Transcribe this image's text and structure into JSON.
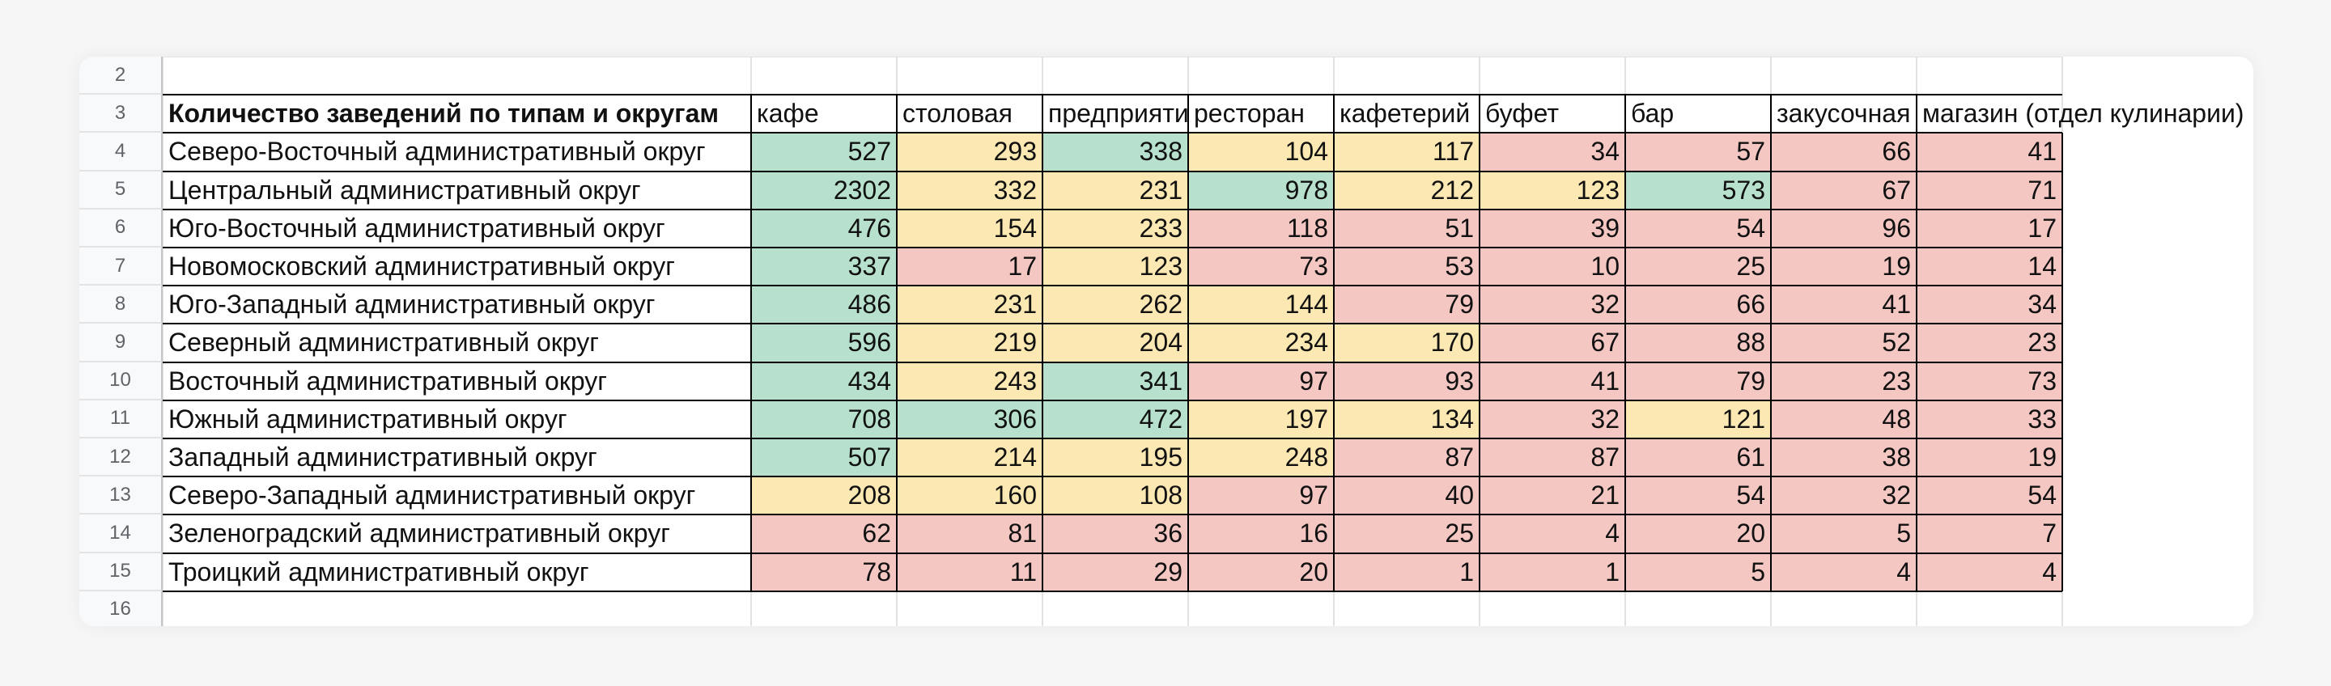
{
  "sheet": {
    "row_numbers": [
      "2",
      "3",
      "4",
      "5",
      "6",
      "7",
      "8",
      "9",
      "10",
      "11",
      "12",
      "13",
      "14",
      "15",
      "16"
    ],
    "title": "Количество заведений по типам и округам",
    "headers": [
      "кафе",
      "столовая",
      "предприяти",
      "ресторан",
      "кафетерий",
      "буфет",
      "бар",
      "закусочная",
      "магазин (отдел кулинарии)"
    ],
    "colors": {
      "green": "#b7e1cd",
      "yellow": "#fce8b2",
      "red": "#f4c7c3"
    },
    "rows": [
      {
        "label": "Северо-Восточный административный округ",
        "values": [
          "527",
          "293",
          "338",
          "104",
          "117",
          "34",
          "57",
          "66",
          "41"
        ],
        "colors": [
          "green",
          "yellow",
          "green",
          "yellow",
          "yellow",
          "red",
          "red",
          "red",
          "red"
        ]
      },
      {
        "label": "Центральный административный округ",
        "values": [
          "2302",
          "332",
          "231",
          "978",
          "212",
          "123",
          "573",
          "67",
          "71"
        ],
        "colors": [
          "green",
          "yellow",
          "yellow",
          "green",
          "yellow",
          "yellow",
          "green",
          "red",
          "red"
        ]
      },
      {
        "label": "Юго-Восточный административный округ",
        "values": [
          "476",
          "154",
          "233",
          "118",
          "51",
          "39",
          "54",
          "96",
          "17"
        ],
        "colors": [
          "green",
          "yellow",
          "yellow",
          "red",
          "red",
          "red",
          "red",
          "red",
          "red"
        ]
      },
      {
        "label": "Новомосковский административный округ",
        "values": [
          "337",
          "17",
          "123",
          "73",
          "53",
          "10",
          "25",
          "19",
          "14"
        ],
        "colors": [
          "green",
          "red",
          "yellow",
          "red",
          "red",
          "red",
          "red",
          "red",
          "red"
        ]
      },
      {
        "label": "Юго-Западный административный округ",
        "values": [
          "486",
          "231",
          "262",
          "144",
          "79",
          "32",
          "66",
          "41",
          "34"
        ],
        "colors": [
          "green",
          "yellow",
          "yellow",
          "yellow",
          "red",
          "red",
          "red",
          "red",
          "red"
        ]
      },
      {
        "label": "Северный административный округ",
        "values": [
          "596",
          "219",
          "204",
          "234",
          "170",
          "67",
          "88",
          "52",
          "23"
        ],
        "colors": [
          "green",
          "yellow",
          "yellow",
          "yellow",
          "yellow",
          "red",
          "red",
          "red",
          "red"
        ]
      },
      {
        "label": "Восточный административный округ",
        "values": [
          "434",
          "243",
          "341",
          "97",
          "93",
          "41",
          "79",
          "23",
          "73"
        ],
        "colors": [
          "green",
          "yellow",
          "green",
          "red",
          "red",
          "red",
          "red",
          "red",
          "red"
        ]
      },
      {
        "label": "Южный административный округ",
        "values": [
          "708",
          "306",
          "472",
          "197",
          "134",
          "32",
          "121",
          "48",
          "33"
        ],
        "colors": [
          "green",
          "green",
          "green",
          "yellow",
          "yellow",
          "red",
          "yellow",
          "red",
          "red"
        ]
      },
      {
        "label": "Западный административный округ",
        "values": [
          "507",
          "214",
          "195",
          "248",
          "87",
          "87",
          "61",
          "38",
          "19"
        ],
        "colors": [
          "green",
          "yellow",
          "yellow",
          "yellow",
          "red",
          "red",
          "red",
          "red",
          "red"
        ]
      },
      {
        "label": "Северо-Западный административный округ",
        "values": [
          "208",
          "160",
          "108",
          "97",
          "40",
          "21",
          "54",
          "32",
          "54"
        ],
        "colors": [
          "yellow",
          "yellow",
          "yellow",
          "red",
          "red",
          "red",
          "red",
          "red",
          "red"
        ]
      },
      {
        "label": "Зеленоградский административный округ",
        "values": [
          "62",
          "81",
          "36",
          "16",
          "25",
          "4",
          "20",
          "5",
          "7"
        ],
        "colors": [
          "red",
          "red",
          "red",
          "red",
          "red",
          "red",
          "red",
          "red",
          "red"
        ]
      },
      {
        "label": "Троицкий административный округ",
        "values": [
          "78",
          "11",
          "29",
          "20",
          "1",
          "1",
          "5",
          "4",
          "4"
        ],
        "colors": [
          "red",
          "red",
          "red",
          "red",
          "red",
          "red",
          "red",
          "red",
          "red"
        ]
      }
    ]
  }
}
